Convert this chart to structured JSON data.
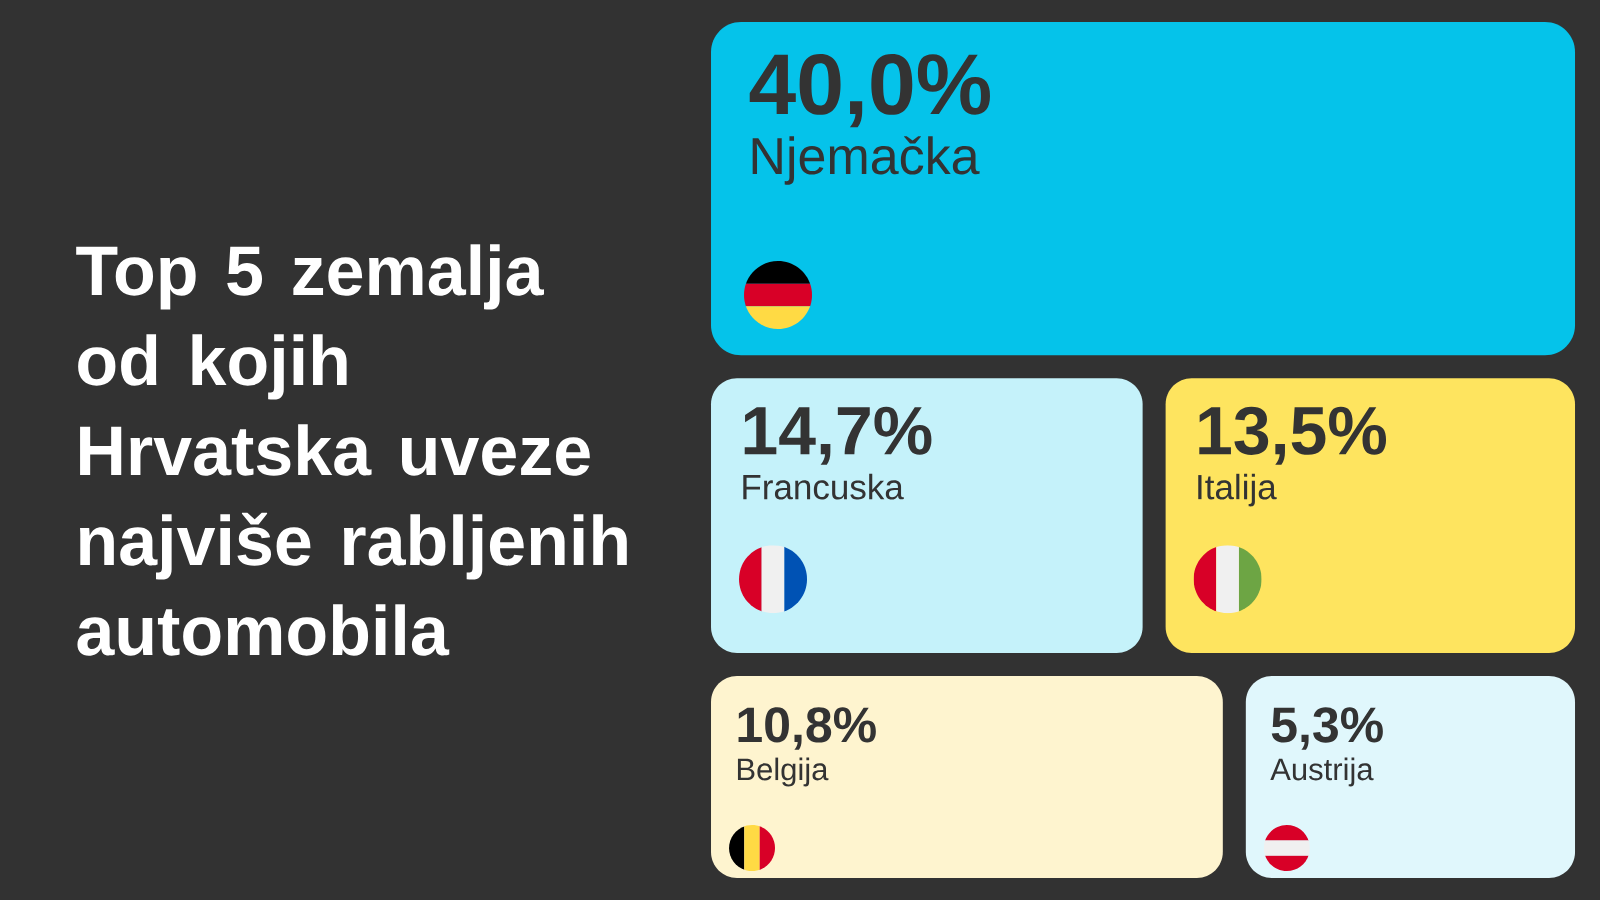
{
  "chart_data": {
    "type": "other",
    "title": "Top 5 zemalja od kojih Hrvatska uveze najviše rabljenih automobila",
    "categories": [
      "Njemačka",
      "Francuska",
      "Italija",
      "Belgija",
      "Austrija"
    ],
    "values": [
      40.0,
      14.7,
      13.5,
      10.8,
      5.3
    ],
    "value_labels": [
      "40,0%",
      "14,7%",
      "13,5%",
      "10,8%",
      "5,3%"
    ],
    "colors": [
      "#05c3ea",
      "#c5f2fa",
      "#fee45f",
      "#fef4cf",
      "#e0f7fc"
    ]
  }
}
